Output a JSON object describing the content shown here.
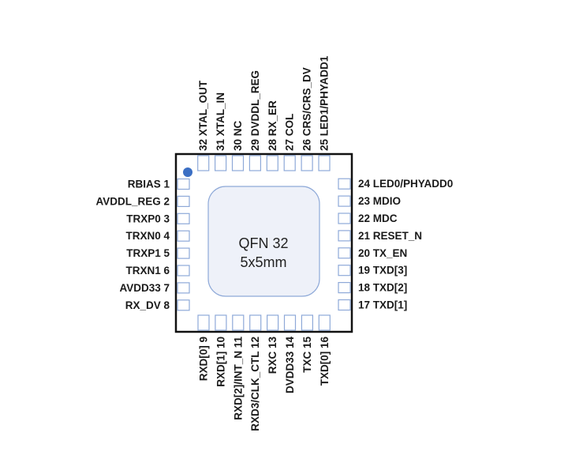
{
  "package": {
    "name": "QFN 32",
    "size": "5x5mm",
    "colors": {
      "outline": "#111111",
      "pin": "#8ea9d8",
      "die_fill": "#eef1f9",
      "die_stroke": "#8ea9d8",
      "pin1_dot": "#3b6fc4"
    }
  },
  "pins": {
    "left": [
      {
        "num": "1",
        "name": "RBIAS"
      },
      {
        "num": "2",
        "name": "AVDDL_REG"
      },
      {
        "num": "3",
        "name": "TRXP0"
      },
      {
        "num": "4",
        "name": "TRXN0"
      },
      {
        "num": "5",
        "name": "TRXP1"
      },
      {
        "num": "6",
        "name": "TRXN1"
      },
      {
        "num": "7",
        "name": "AVDD33"
      },
      {
        "num": "8",
        "name": "RX_DV"
      }
    ],
    "bottom": [
      {
        "num": "9",
        "name": "RXD[0]"
      },
      {
        "num": "10",
        "name": "RXD[1]"
      },
      {
        "num": "11",
        "name": "RXD[2]/INT_N"
      },
      {
        "num": "12",
        "name": "RXD3/CLK_CTL"
      },
      {
        "num": "13",
        "name": "RXC"
      },
      {
        "num": "14",
        "name": "DVDD33"
      },
      {
        "num": "15",
        "name": "TXC"
      },
      {
        "num": "16",
        "name": "TXD[0]"
      }
    ],
    "right": [
      {
        "num": "17",
        "name": "TXD[1]"
      },
      {
        "num": "18",
        "name": "TXD[2]"
      },
      {
        "num": "19",
        "name": "TXD[3]"
      },
      {
        "num": "20",
        "name": "TX_EN"
      },
      {
        "num": "21",
        "name": "RESET_N"
      },
      {
        "num": "22",
        "name": "MDC"
      },
      {
        "num": "23",
        "name": "MDIO"
      },
      {
        "num": "24",
        "name": "LED0/PHYADD0"
      }
    ],
    "top": [
      {
        "num": "25",
        "name": "LED1/PHYADD1"
      },
      {
        "num": "26",
        "name": "CRS/CRS_DV"
      },
      {
        "num": "27",
        "name": "COL"
      },
      {
        "num": "28",
        "name": "RX_ER"
      },
      {
        "num": "29",
        "name": "DVDDL_REG"
      },
      {
        "num": "30",
        "name": "NC"
      },
      {
        "num": "31",
        "name": "XTAL_IN"
      },
      {
        "num": "32",
        "name": "XTAL_OUT"
      }
    ]
  }
}
